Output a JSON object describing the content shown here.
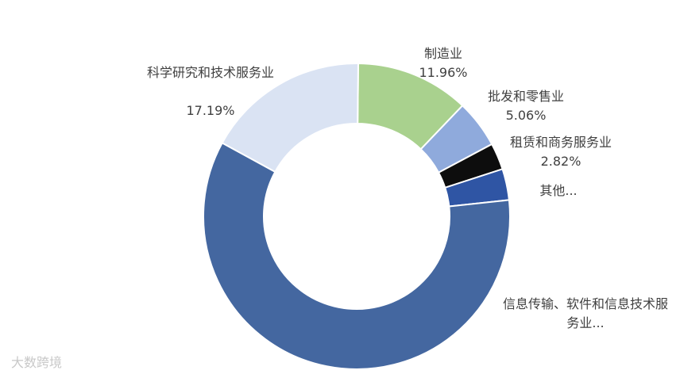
{
  "chart_data": {
    "type": "donut",
    "categories": [
      "制造业",
      "批发和零售业",
      "租赁和商务服务业",
      "其他...",
      "信息传输、软件和信息技术服务业...",
      "科学研究和技术服务业"
    ],
    "values": [
      11.96,
      5.06,
      2.82,
      3.3,
      59.67,
      17.19
    ],
    "value_labels": [
      "11.96%",
      "5.06%",
      "2.82%",
      null,
      null,
      "17.19%"
    ],
    "colors": [
      "#a9d18e",
      "#8faadc",
      "#0d0d0d",
      "#2f55a4",
      "#4467a0",
      "#dae3f3"
    ]
  },
  "watermark": "大数跨境"
}
